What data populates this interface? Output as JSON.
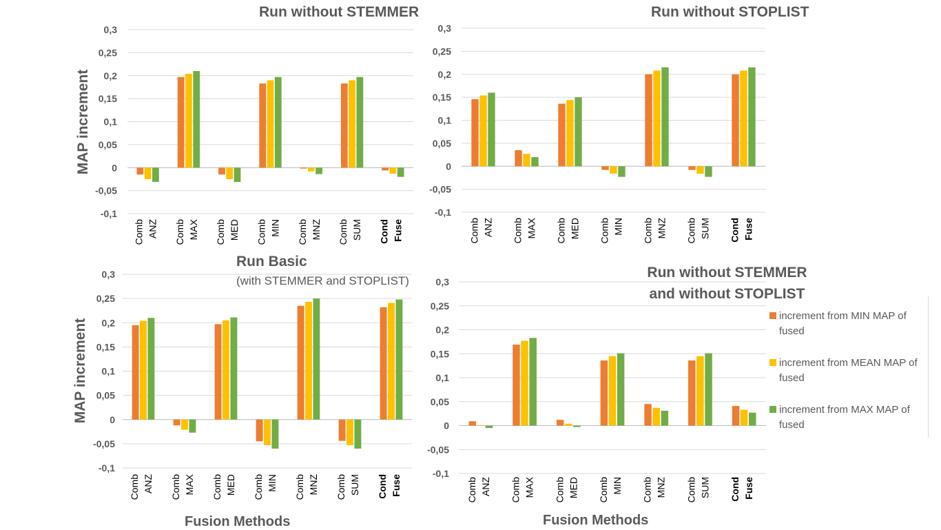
{
  "labels": {
    "y_axis_left_top": "MAP increment",
    "y_axis_left_bottom": "MAP increment",
    "x_axis_bottom_left": "Fusion Methods",
    "x_axis_bottom_right": "Fusion Methods"
  },
  "legend": [
    {
      "label": "increment from MIN MAP of fused",
      "color": "#ED7D31"
    },
    {
      "label": "increment from MEAN MAP of fused",
      "color": "#FFC000"
    },
    {
      "label": "increment from MAX  MAP of fused",
      "color": "#70AD47"
    }
  ],
  "chart_data": [
    {
      "type": "bar",
      "title": "Run without STEMMER",
      "subtitle": "",
      "ylabel": "MAP increment",
      "xlabel": "",
      "ylim": [
        -0.1,
        0.3
      ],
      "yticks": [
        "-0,1",
        "-0,05",
        "0",
        "0,05",
        "0,1",
        "0,15",
        "0,2",
        "0,25",
        "0,3"
      ],
      "categories": [
        [
          "Comb",
          "ANZ"
        ],
        [
          "Comb",
          "MAX"
        ],
        [
          "Comb",
          "MED"
        ],
        [
          "Comb",
          "MIN"
        ],
        [
          "Comb",
          "MNZ"
        ],
        [
          "Comb",
          "SUM"
        ],
        [
          "Cond",
          "Fuse"
        ]
      ],
      "series": [
        {
          "name": "increment from MIN MAP of fused",
          "values": [
            -0.015,
            0.197,
            -0.015,
            0.183,
            -0.002,
            0.183,
            -0.006
          ]
        },
        {
          "name": "increment from MEAN MAP of fused",
          "values": [
            -0.025,
            0.204,
            -0.025,
            0.19,
            -0.008,
            0.19,
            -0.013
          ]
        },
        {
          "name": "increment from MAX  MAP of fused",
          "values": [
            -0.031,
            0.21,
            -0.031,
            0.197,
            -0.014,
            0.197,
            -0.02
          ]
        }
      ],
      "grid": true
    },
    {
      "type": "bar",
      "title": "Run without STOPLIST",
      "subtitle": "",
      "ylabel": "",
      "xlabel": "",
      "ylim": [
        -0.1,
        0.3
      ],
      "yticks": [
        "-0,1",
        "-0,05",
        "0",
        "0,05",
        "0,1",
        "0,15",
        "0,2",
        "0,25",
        "0,3"
      ],
      "categories": [
        [
          "Comb",
          "ANZ"
        ],
        [
          "Comb",
          "MAX"
        ],
        [
          "Comb",
          "MED"
        ],
        [
          "Comb",
          "MIN"
        ],
        [
          "Comb",
          "MNZ"
        ],
        [
          "Comb",
          "SUM"
        ],
        [
          "Cond",
          "Fuse"
        ]
      ],
      "series": [
        {
          "name": "increment from MIN MAP of fused",
          "values": [
            0.146,
            0.035,
            0.136,
            -0.008,
            0.2,
            -0.008,
            0.2
          ]
        },
        {
          "name": "increment from MEAN MAP of fused",
          "values": [
            0.154,
            0.027,
            0.144,
            -0.016,
            0.208,
            -0.016,
            0.208
          ]
        },
        {
          "name": "increment from MAX  MAP of fused",
          "values": [
            0.16,
            0.02,
            0.15,
            -0.023,
            0.215,
            -0.023,
            0.215
          ]
        }
      ],
      "grid": true
    },
    {
      "type": "bar",
      "title": "Run Basic",
      "subtitle": "(with STEMMER and STOPLIST)",
      "ylabel": "MAP increment",
      "xlabel": "Fusion Methods",
      "ylim": [
        -0.1,
        0.3
      ],
      "yticks": [
        "-0,1",
        "-0,05",
        "0",
        "0,05",
        "0,1",
        "0,15",
        "0,2",
        "0,25",
        "0,3"
      ],
      "categories": [
        [
          "Comb",
          "ANZ"
        ],
        [
          "Comb",
          "MAX"
        ],
        [
          "Comb",
          "MED"
        ],
        [
          "Comb",
          "MIN"
        ],
        [
          "Comb",
          "MNZ"
        ],
        [
          "Comb",
          "SUM"
        ],
        [
          "Cond",
          "Fuse"
        ]
      ],
      "series": [
        {
          "name": "increment from MIN MAP of fused",
          "values": [
            0.195,
            -0.012,
            0.197,
            -0.045,
            0.235,
            -0.044,
            0.232
          ]
        },
        {
          "name": "increment from MEAN MAP of fused",
          "values": [
            0.204,
            -0.021,
            0.205,
            -0.053,
            0.243,
            -0.053,
            0.241
          ]
        },
        {
          "name": "increment from MAX  MAP of fused",
          "values": [
            0.21,
            -0.027,
            0.211,
            -0.06,
            0.25,
            -0.06,
            0.248
          ]
        }
      ],
      "grid": true
    },
    {
      "type": "bar",
      "title": "Run without STEMMER and without STOPLIST",
      "subtitle": "",
      "ylabel": "",
      "xlabel": "Fusion Methods",
      "ylim": [
        -0.1,
        0.3
      ],
      "yticks": [
        "-0,1",
        "-0,05",
        "0",
        "0,05",
        "0,1",
        "0,15",
        "0,2",
        "0,25",
        "0,3"
      ],
      "categories": [
        [
          "Comb",
          "ANZ"
        ],
        [
          "Comb",
          "MAX"
        ],
        [
          "Comb",
          "MED"
        ],
        [
          "Comb",
          "MIN"
        ],
        [
          "Comb",
          "MNZ"
        ],
        [
          "Comb",
          "SUM"
        ],
        [
          "Cond",
          "Fuse"
        ]
      ],
      "series": [
        {
          "name": "increment from MIN MAP of fused",
          "values": [
            0.009,
            0.169,
            0.012,
            0.136,
            0.045,
            0.136,
            0.041
          ]
        },
        {
          "name": "increment from MEAN MAP of fused",
          "values": [
            0.001,
            0.177,
            0.004,
            0.145,
            0.037,
            0.145,
            0.033
          ]
        },
        {
          "name": "increment from MAX  MAP of fused",
          "values": [
            -0.005,
            0.183,
            -0.003,
            0.151,
            0.031,
            0.151,
            0.027
          ]
        }
      ],
      "grid": true
    }
  ]
}
